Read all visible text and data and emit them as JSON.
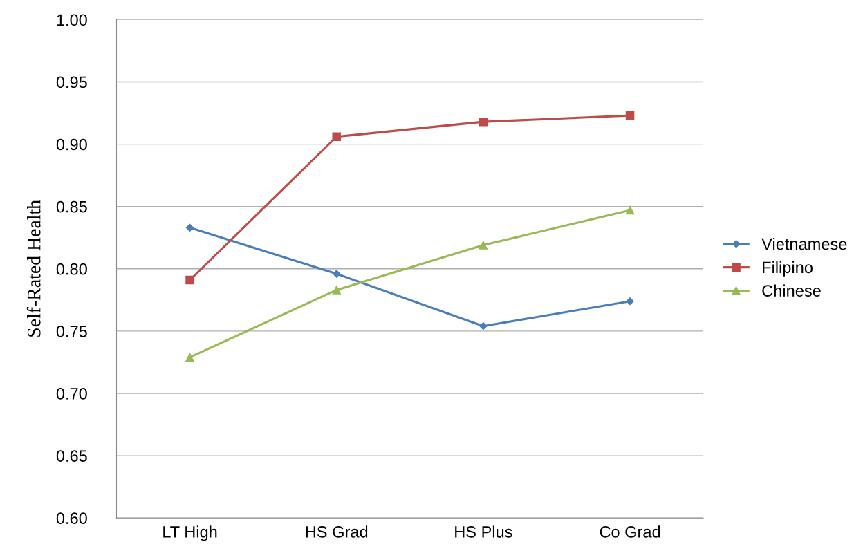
{
  "chart_data": {
    "type": "line",
    "ylabel": "Self-Rated Health",
    "categories": [
      "LT High",
      "HS Grad",
      "HS Plus",
      "Co Grad"
    ],
    "series": [
      {
        "name": "Vietnamese",
        "color": "#4a7ebb",
        "marker": "diamond",
        "values": [
          0.833,
          0.796,
          0.754,
          0.774
        ]
      },
      {
        "name": "Filipino",
        "color": "#be4b48",
        "marker": "square",
        "values": [
          0.791,
          0.906,
          0.918,
          0.923
        ]
      },
      {
        "name": "Chinese",
        "color": "#98b954",
        "marker": "triangle",
        "values": [
          0.729,
          0.783,
          0.819,
          0.847
        ]
      }
    ],
    "ylim": [
      0.6,
      1.0
    ],
    "yticks": [
      {
        "value": 0.6,
        "label": "0.60"
      },
      {
        "value": 0.65,
        "label": "0.65"
      },
      {
        "value": 0.7,
        "label": "0.70"
      },
      {
        "value": 0.75,
        "label": "0.75"
      },
      {
        "value": 0.8,
        "label": "0.80"
      },
      {
        "value": 0.85,
        "label": "0.85"
      },
      {
        "value": 0.9,
        "label": "0.90"
      },
      {
        "value": 0.95,
        "label": "0.95"
      },
      {
        "value": 1.0,
        "label": "1.00"
      }
    ],
    "grid": "y",
    "legend": "right",
    "line_style": "solid"
  }
}
